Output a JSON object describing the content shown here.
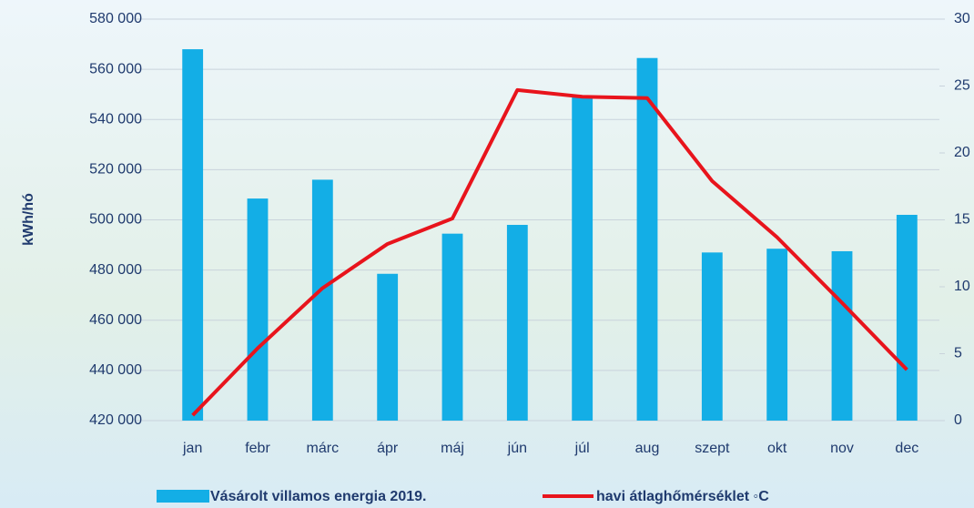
{
  "chart_data": {
    "type": "bar_line",
    "y_label": "kWh/hó",
    "categories": [
      "jan",
      "febr",
      "márc",
      "ápr",
      "máj",
      "jún",
      "júl",
      "aug",
      "szept",
      "okt",
      "nov",
      "dec"
    ],
    "series": [
      {
        "name": "Vásárolt villamos energia 2019.",
        "color": "#13aee6",
        "type": "bar",
        "values": [
          568000,
          508500,
          516000,
          478500,
          494500,
          498000,
          549000,
          564500,
          487000,
          488500,
          487500,
          502000
        ]
      },
      {
        "name": "havi átlaghőmérséklet ◦C",
        "color": "#e8141c",
        "type": "line",
        "axis": "y2",
        "values": [
          0.4,
          5.4,
          9.9,
          13.2,
          15.1,
          24.7,
          24.2,
          24.1,
          17.9,
          13.7,
          8.8,
          3.8
        ]
      }
    ],
    "ylim": [
      420000,
      580000
    ],
    "yticks": [
      {
        "value": 420000,
        "label": "420 000"
      },
      {
        "value": 440000,
        "label": "440 000"
      },
      {
        "value": 460000,
        "label": "460 000"
      },
      {
        "value": 480000,
        "label": "480 000"
      },
      {
        "value": 500000,
        "label": "500 000"
      },
      {
        "value": 520000,
        "label": "520 000"
      },
      {
        "value": 540000,
        "label": "540 000"
      },
      {
        "value": 560000,
        "label": "560 000"
      },
      {
        "value": 580000,
        "label": "580 000"
      }
    ],
    "y2lim": [
      0,
      30
    ],
    "y2ticks": [
      0,
      5,
      10,
      15,
      20,
      25,
      30
    ],
    "grid": true
  }
}
